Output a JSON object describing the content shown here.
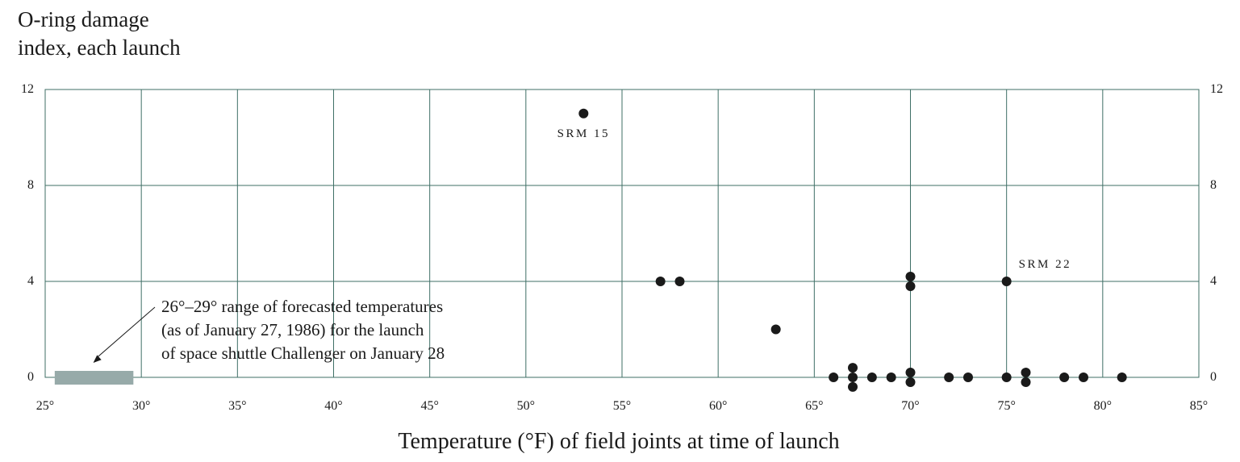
{
  "chart_data": {
    "type": "scatter",
    "title_lines": [
      "O-ring damage",
      "index, each launch"
    ],
    "xlabel": "Temperature (°F) of field joints at time of launch",
    "ylabel": "",
    "xlim": [
      25,
      85
    ],
    "ylim": [
      0,
      12
    ],
    "x_ticks": [
      25,
      30,
      35,
      40,
      45,
      50,
      55,
      60,
      65,
      70,
      75,
      80,
      85
    ],
    "x_tick_labels": [
      "25°",
      "30°",
      "35°",
      "40°",
      "45°",
      "50°",
      "55°",
      "60°",
      "65°",
      "70°",
      "75°",
      "80°",
      "85°"
    ],
    "y_ticks": [
      0,
      4,
      8,
      12
    ],
    "y_tick_labels": [
      "0",
      "4",
      "8",
      "12"
    ],
    "grid": true,
    "points": [
      {
        "x": 53,
        "y": 11
      },
      {
        "x": 57,
        "y": 4
      },
      {
        "x": 58,
        "y": 4
      },
      {
        "x": 63,
        "y": 2
      },
      {
        "x": 66,
        "y": 0
      },
      {
        "x": 67,
        "y": 0.4
      },
      {
        "x": 67,
        "y": 0
      },
      {
        "x": 67,
        "y": -0.4
      },
      {
        "x": 68,
        "y": 0
      },
      {
        "x": 69,
        "y": 0
      },
      {
        "x": 70,
        "y": 4.2
      },
      {
        "x": 70,
        "y": 3.8
      },
      {
        "x": 70,
        "y": 0.2
      },
      {
        "x": 70,
        "y": -0.2
      },
      {
        "x": 72,
        "y": 0
      },
      {
        "x": 73,
        "y": 0
      },
      {
        "x": 75,
        "y": 4
      },
      {
        "x": 75,
        "y": 0
      },
      {
        "x": 76,
        "y": 0.2
      },
      {
        "x": 76,
        "y": -0.2
      },
      {
        "x": 78,
        "y": 0
      },
      {
        "x": 79,
        "y": 0
      },
      {
        "x": 81,
        "y": 0
      }
    ],
    "point_labels": [
      {
        "text": "SRM 15",
        "x": 53,
        "y": 11
      },
      {
        "text": "SRM 22",
        "x": 75,
        "y": 4
      }
    ],
    "forecast_range": [
      26,
      29
    ],
    "forecast_color": "#97aaa9",
    "grid_color": "#3f6f66",
    "point_color": "#1a1a1a",
    "annotation_lines": [
      "26°–29° range of forecasted temperatures",
      "(as of January 27, 1986) for the launch",
      "of space shuttle Challenger on January 28"
    ]
  }
}
